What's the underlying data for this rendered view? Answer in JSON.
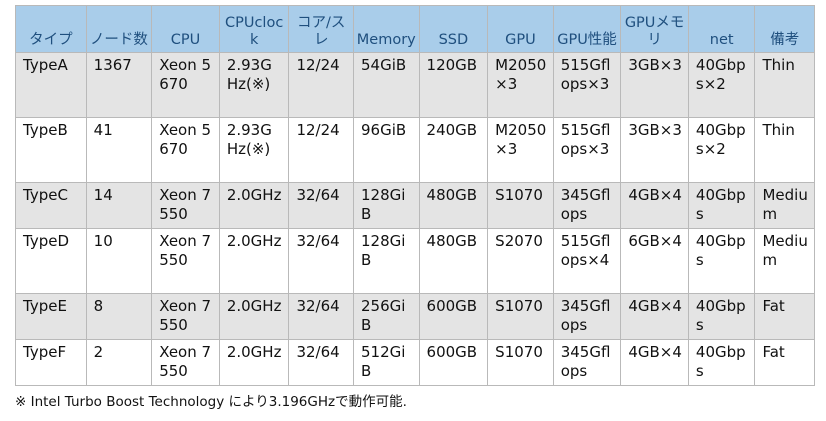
{
  "table": {
    "headers": [
      {
        "key": "type",
        "label": "タイプ",
        "align": "center"
      },
      {
        "key": "nodes",
        "label": "ノード数",
        "align": "center"
      },
      {
        "key": "cpu",
        "label": "CPU",
        "align": "center"
      },
      {
        "key": "cpuclock",
        "label": "CPUclock",
        "align": "center"
      },
      {
        "key": "cores",
        "label": "コア/スレ",
        "align": "center"
      },
      {
        "key": "memory",
        "label": "Memory",
        "align": "center"
      },
      {
        "key": "ssd",
        "label": "SSD",
        "align": "center"
      },
      {
        "key": "gpu",
        "label": "GPU",
        "align": "center"
      },
      {
        "key": "gpuperf",
        "label": "GPU性能",
        "align": "center"
      },
      {
        "key": "gpumem",
        "label": "GPUメモリ",
        "align": "center"
      },
      {
        "key": "net",
        "label": "net",
        "align": "center"
      },
      {
        "key": "notes",
        "label": "備考",
        "align": "center"
      }
    ],
    "rows": [
      {
        "type": "TypeA",
        "nodes": "1367",
        "cpu": "Xeon 5670",
        "cpuclock": "2.93GHz(※)",
        "cores": "12/24",
        "memory": "54GiB",
        "ssd": "120GB",
        "gpu": "M2050×3",
        "gpuperf": "515Gflops×3",
        "gpumem": "3GB×3",
        "net": "40Gbps×2",
        "notes": "Thin"
      },
      {
        "type": "TypeB",
        "nodes": "41",
        "cpu": "Xeon 5670",
        "cpuclock": "2.93GHz(※)",
        "cores": "12/24",
        "memory": "96GiB",
        "ssd": "240GB",
        "gpu": "M2050×3",
        "gpuperf": "515Gflops×3",
        "gpumem": "3GB×3",
        "net": "40Gbps×2",
        "notes": "Thin"
      },
      {
        "type": "TypeC",
        "nodes": "14",
        "cpu": "Xeon 7550",
        "cpuclock": "2.0GHz",
        "cores": "32/64",
        "memory": "128GiB",
        "ssd": "480GB",
        "gpu": "S1070",
        "gpuperf": "345Gflops",
        "gpumem": "4GB×4",
        "net": "40Gbps",
        "notes": "Medium"
      },
      {
        "type": "TypeD",
        "nodes": "10",
        "cpu": "Xeon 7550",
        "cpuclock": "2.0GHz",
        "cores": "32/64",
        "memory": "128GiB",
        "ssd": "480GB",
        "gpu": "S2070",
        "gpuperf": "515Gflops×4",
        "gpumem": "6GB×4",
        "net": "40Gbps",
        "notes": "Medium"
      },
      {
        "type": "TypeE",
        "nodes": "8",
        "cpu": "Xeon 7550",
        "cpuclock": "2.0GHz",
        "cores": "32/64",
        "memory": "256GiB",
        "ssd": "600GB",
        "gpu": "S1070",
        "gpuperf": "345Gflops",
        "gpumem": "4GB×4",
        "net": "40Gbps",
        "notes": "Fat"
      },
      {
        "type": "TypeF",
        "nodes": "2",
        "cpu": "Xeon 7550",
        "cpuclock": "2.0GHz",
        "cores": "32/64",
        "memory": "512GiB",
        "ssd": "600GB",
        "gpu": "S1070",
        "gpuperf": "345Gflops",
        "gpumem": "4GB×4",
        "net": "40Gbps",
        "notes": "Fat"
      }
    ]
  },
  "footnote": "※ Intel Turbo Boost Technology により3.196GHzで動作可能."
}
